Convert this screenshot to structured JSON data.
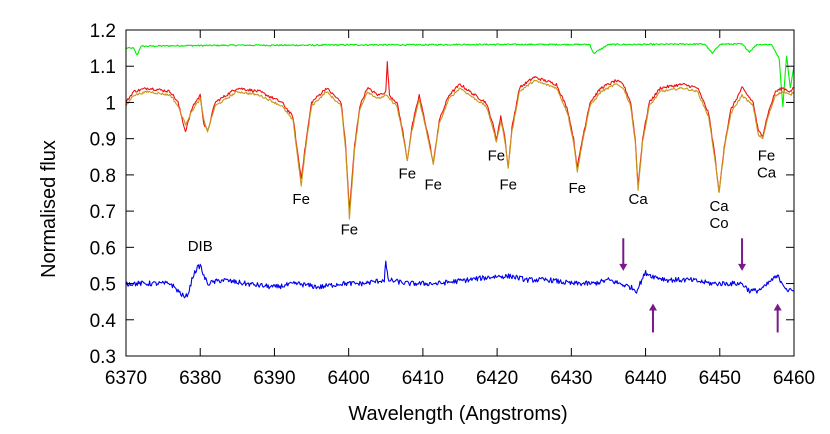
{
  "chart_data": {
    "type": "line",
    "title": "",
    "xlabel": "Wavelength (Angstroms)",
    "ylabel": "Normalised flux",
    "xlim": [
      6370,
      6460
    ],
    "ylim": [
      0.3,
      1.2
    ],
    "grid": false,
    "xticks": [
      6370,
      6380,
      6390,
      6400,
      6410,
      6420,
      6430,
      6440,
      6450,
      6460
    ],
    "yticks": [
      0.3,
      0.4,
      0.5,
      0.6,
      0.7,
      0.8,
      0.9,
      1.0,
      1.1,
      1.2
    ],
    "xtick_labels": [
      "6370",
      "6380",
      "6390",
      "6400",
      "6410",
      "6420",
      "6430",
      "6440",
      "6450",
      "6460"
    ],
    "ytick_labels": [
      "0.3",
      "0.4",
      "0.5",
      "0.6",
      "0.7",
      "0.8",
      "0.9",
      "1",
      "1.1",
      "1.2"
    ],
    "series": [
      {
        "color": "#00ee00",
        "x": [
          6370,
          6371,
          6371.5,
          6372,
          6375,
          6378,
          6380,
          6385,
          6390,
          6395,
          6400,
          6405,
          6410,
          6415,
          6420,
          6425,
          6430,
          6432.5,
          6433,
          6435,
          6440,
          6445,
          6448,
          6449,
          6450,
          6453,
          6454,
          6455,
          6457,
          6458,
          6458.5,
          6459,
          6459.5,
          6460
        ],
        "y": [
          1.15,
          1.15,
          1.13,
          1.155,
          1.156,
          1.157,
          1.157,
          1.158,
          1.158,
          1.158,
          1.159,
          1.159,
          1.159,
          1.16,
          1.16,
          1.16,
          1.16,
          1.16,
          1.135,
          1.16,
          1.16,
          1.161,
          1.161,
          1.135,
          1.161,
          1.161,
          1.14,
          1.16,
          1.16,
          1.12,
          0.99,
          1.13,
          1.04,
          1.1
        ]
      },
      {
        "color": "#ee1111",
        "x": [
          6370,
          6371,
          6373,
          6376,
          6377,
          6378,
          6379,
          6380,
          6380.5,
          6381,
          6382,
          6385,
          6388,
          6391,
          6392.5,
          6393,
          6393.6,
          6394.3,
          6395,
          6397,
          6399,
          6399.6,
          6400.1,
          6400.8,
          6401.5,
          6402.5,
          6404,
          6405,
          6405.2,
          6405.5,
          6406.5,
          6407.3,
          6407.9,
          6408.5,
          6409.5,
          6410.8,
          6411.4,
          6412.2,
          6413.5,
          6415,
          6417,
          6418.5,
          6419.3,
          6419.9,
          6420.5,
          6421,
          6421.5,
          6422,
          6423,
          6425,
          6428,
          6429.5,
          6430.3,
          6430.8,
          6431.5,
          6432.5,
          6434,
          6436,
          6437,
          6438,
          6438.6,
          6439,
          6439.6,
          6440.5,
          6442,
          6445,
          6447,
          6448.5,
          6449.3,
          6449.9,
          6450.6,
          6451.5,
          6453,
          6454.5,
          6455.2,
          6455.8,
          6456.5,
          6457.5,
          6458.5,
          6459.5,
          6460
        ],
        "y": [
          1.0,
          1.03,
          1.04,
          1.03,
          1.0,
          0.92,
          0.99,
          1.02,
          0.94,
          0.92,
          1.0,
          1.04,
          1.03,
          1.0,
          0.96,
          0.88,
          0.79,
          0.9,
          1.0,
          1.04,
          1.0,
          0.88,
          0.7,
          0.88,
          0.99,
          1.04,
          1.02,
          1.03,
          1.11,
          1.02,
          1.0,
          0.92,
          0.84,
          0.93,
          1.02,
          0.9,
          0.83,
          0.95,
          1.02,
          1.05,
          1.02,
          1.0,
          0.95,
          0.9,
          0.96,
          0.91,
          0.82,
          0.93,
          1.04,
          1.07,
          1.05,
          0.98,
          0.9,
          0.82,
          0.9,
          1.0,
          1.04,
          1.06,
          1.05,
          1.0,
          0.9,
          0.77,
          0.9,
          1.0,
          1.04,
          1.05,
          1.04,
          0.97,
          0.86,
          0.75,
          0.88,
          0.98,
          1.04,
          1.0,
          0.92,
          0.91,
          0.97,
          1.03,
          1.04,
          1.03,
          1.04
        ]
      },
      {
        "color": "#c8961e",
        "x": [
          6370,
          6371,
          6373,
          6376,
          6377,
          6378,
          6379,
          6380,
          6380.5,
          6381,
          6382,
          6385,
          6388,
          6391,
          6392.5,
          6393,
          6393.6,
          6394.3,
          6395,
          6397,
          6399,
          6399.6,
          6400.1,
          6400.8,
          6401.5,
          6402.5,
          6404,
          6405,
          6406.5,
          6407.3,
          6407.9,
          6408.5,
          6409.5,
          6410.8,
          6411.4,
          6412.2,
          6413.5,
          6415,
          6417,
          6418.5,
          6419.3,
          6419.9,
          6420.5,
          6421,
          6421.5,
          6422,
          6423,
          6425,
          6428,
          6429.5,
          6430.3,
          6430.8,
          6431.5,
          6432.5,
          6434,
          6436,
          6437,
          6438,
          6438.6,
          6439,
          6439.6,
          6440.5,
          6442,
          6445,
          6447,
          6448.5,
          6449.3,
          6449.9,
          6450.6,
          6451.5,
          6453,
          6454.5,
          6455.2,
          6455.8,
          6456.5,
          6457.5,
          6458.5,
          6459.5,
          6460
        ],
        "y": [
          0.99,
          1.02,
          1.03,
          1.02,
          0.99,
          0.94,
          0.98,
          1.01,
          0.95,
          0.92,
          0.99,
          1.03,
          1.02,
          0.99,
          0.95,
          0.87,
          0.77,
          0.89,
          0.99,
          1.03,
          0.99,
          0.87,
          0.68,
          0.87,
          0.98,
          1.03,
          1.01,
          1.02,
          0.99,
          0.91,
          0.84,
          0.92,
          1.01,
          0.89,
          0.83,
          0.94,
          1.01,
          1.04,
          1.01,
          0.99,
          0.94,
          0.89,
          0.95,
          0.9,
          0.82,
          0.92,
          1.03,
          1.06,
          1.04,
          0.97,
          0.89,
          0.81,
          0.89,
          0.99,
          1.03,
          1.05,
          1.04,
          0.99,
          0.89,
          0.76,
          0.89,
          0.99,
          1.03,
          1.04,
          1.03,
          0.96,
          0.85,
          0.75,
          0.87,
          0.97,
          1.02,
          0.99,
          0.91,
          0.9,
          0.96,
          1.02,
          1.03,
          1.02,
          1.03
        ]
      },
      {
        "color": "#0000ee",
        "x": [
          6370,
          6372,
          6374,
          6376,
          6377,
          6378,
          6378.5,
          6379,
          6379.5,
          6380,
          6380.5,
          6381,
          6383,
          6386,
          6390,
          6393,
          6396,
          6399,
          6402,
          6404.8,
          6405,
          6405.3,
          6408,
          6412,
          6416,
          6420,
          6422,
          6424,
          6427,
          6430,
          6433,
          6435,
          6436.5,
          6438,
          6438.8,
          6439.5,
          6440,
          6441,
          6443,
          6446,
          6449,
          6451,
          6453,
          6454,
          6455,
          6456,
          6457,
          6457.8,
          6458.5,
          6459.2,
          6460
        ],
        "y": [
          0.5,
          0.5,
          0.5,
          0.5,
          0.48,
          0.46,
          0.48,
          0.52,
          0.54,
          0.55,
          0.52,
          0.5,
          0.51,
          0.5,
          0.49,
          0.5,
          0.49,
          0.5,
          0.5,
          0.51,
          0.56,
          0.51,
          0.5,
          0.5,
          0.51,
          0.52,
          0.52,
          0.51,
          0.51,
          0.5,
          0.5,
          0.51,
          0.5,
          0.49,
          0.48,
          0.51,
          0.53,
          0.52,
          0.51,
          0.51,
          0.5,
          0.5,
          0.5,
          0.48,
          0.48,
          0.49,
          0.51,
          0.52,
          0.5,
          0.48,
          0.48
        ]
      }
    ],
    "annotations": [
      {
        "lines": [
          "DIB"
        ],
        "x": 6380,
        "y": 0.59
      },
      {
        "lines": [
          "Fe"
        ],
        "x": 6393.6,
        "y": 0.72
      },
      {
        "lines": [
          "Fe"
        ],
        "x": 6400.1,
        "y": 0.635
      },
      {
        "lines": [
          "Fe"
        ],
        "x": 6407.9,
        "y": 0.79
      },
      {
        "lines": [
          "Fe"
        ],
        "x": 6411.4,
        "y": 0.76
      },
      {
        "lines": [
          "Fe"
        ],
        "x": 6419.9,
        "y": 0.84
      },
      {
        "lines": [
          "Fe"
        ],
        "x": 6421.5,
        "y": 0.76
      },
      {
        "lines": [
          "Fe"
        ],
        "x": 6430.8,
        "y": 0.75
      },
      {
        "lines": [
          "Ca"
        ],
        "x": 6439,
        "y": 0.72
      },
      {
        "lines": [
          "Ca",
          "Co"
        ],
        "x": 6449.9,
        "y": 0.7
      },
      {
        "lines": [
          "Fe",
          "Ca"
        ],
        "x": 6456.3,
        "y": 0.84
      }
    ],
    "arrows": [
      {
        "x": 6437,
        "y_from": 0.625,
        "y_to": 0.535
      },
      {
        "x": 6453,
        "y_from": 0.625,
        "y_to": 0.535
      },
      {
        "x": 6441,
        "y_from": 0.365,
        "y_to": 0.445
      },
      {
        "x": 6457.8,
        "y_from": 0.365,
        "y_to": 0.445
      }
    ],
    "arrow_color": "#7a1a8a"
  }
}
